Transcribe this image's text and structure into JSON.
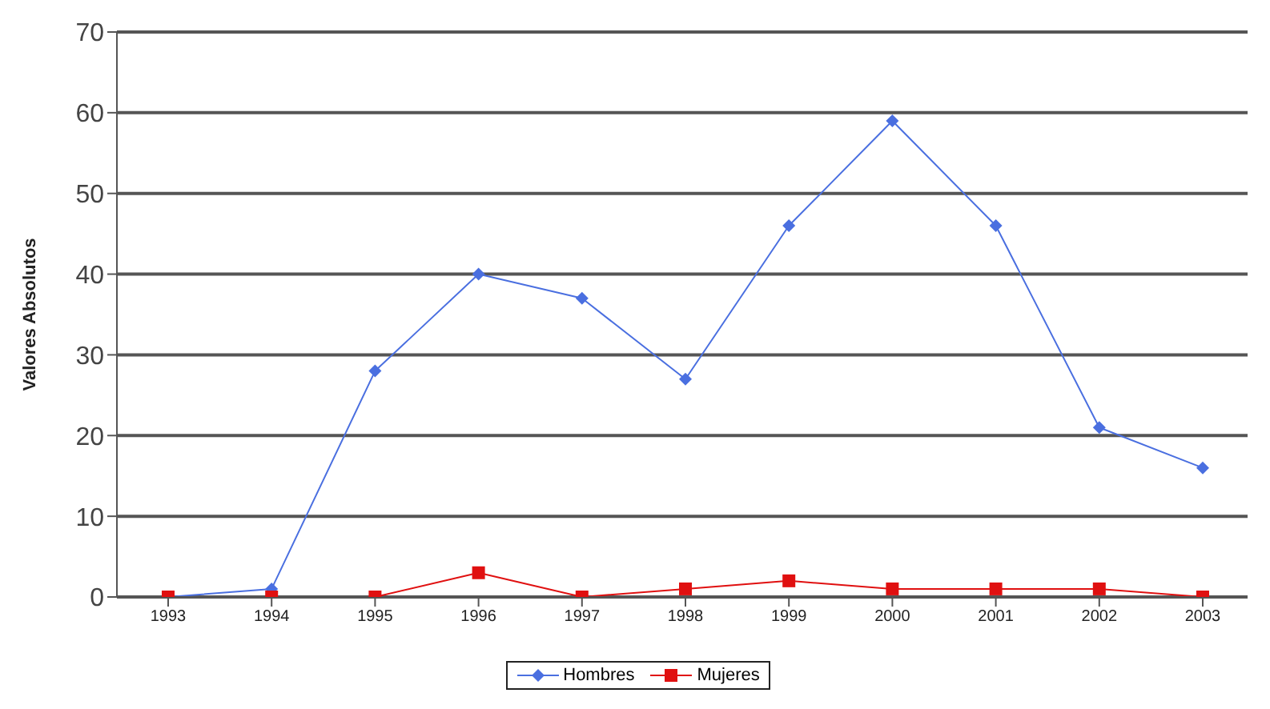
{
  "chart_data": {
    "type": "line",
    "ylabel": "Valores Absolutos",
    "categories": [
      "1993",
      "1994",
      "1995",
      "1996",
      "1997",
      "1998",
      "1999",
      "2000",
      "2001",
      "2002",
      "2003"
    ],
    "series": [
      {
        "name": "Hombres",
        "color": "#4a6fe0",
        "marker": "diamond",
        "values": [
          0,
          1,
          28,
          40,
          37,
          27,
          46,
          59,
          46,
          21,
          16
        ]
      },
      {
        "name": "Mujeres",
        "color": "#e01010",
        "marker": "square",
        "values": [
          0,
          0,
          0,
          3,
          0,
          1,
          2,
          1,
          1,
          1,
          0
        ]
      }
    ],
    "ylim": [
      0,
      70
    ],
    "yticks": [
      0,
      10,
      20,
      30,
      40,
      50,
      60,
      70
    ],
    "grid": "y",
    "legend": "bottom"
  }
}
